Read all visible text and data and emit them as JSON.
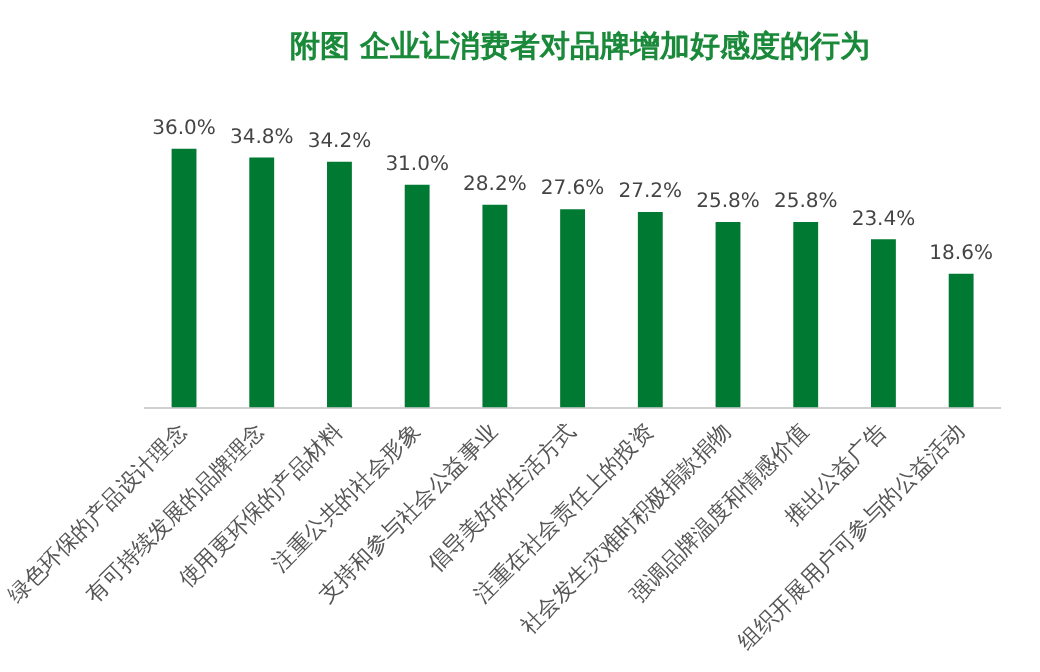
{
  "chart_data": {
    "type": "bar",
    "title": "附图 企业让消费者对品牌增加好感度的行为",
    "categories": [
      "绿色环保的产品设计理念",
      "有可持续发展的品牌理念",
      "使用更环保的产品材料",
      "注重公共的社会形象",
      "支持和参与社会公益事业",
      "倡导美好的生活方式",
      "注重在社会责任上的投资",
      "社会发生灾难时积极捐款捐物",
      "强调品牌温度和情感价值",
      "推出公益广告",
      "组织开展用户可参与的公益活动"
    ],
    "values": [
      36.0,
      34.8,
      34.2,
      31.0,
      28.2,
      27.6,
      27.2,
      25.8,
      25.8,
      23.4,
      18.6
    ],
    "value_labels": [
      "36.0%",
      "34.8%",
      "34.2%",
      "31.0%",
      "28.2%",
      "27.6%",
      "27.2%",
      "25.8%",
      "25.8%",
      "23.4%",
      "18.6%"
    ],
    "color": "#007a33",
    "grid": false,
    "legend": false,
    "tick_labels": "x"
  }
}
